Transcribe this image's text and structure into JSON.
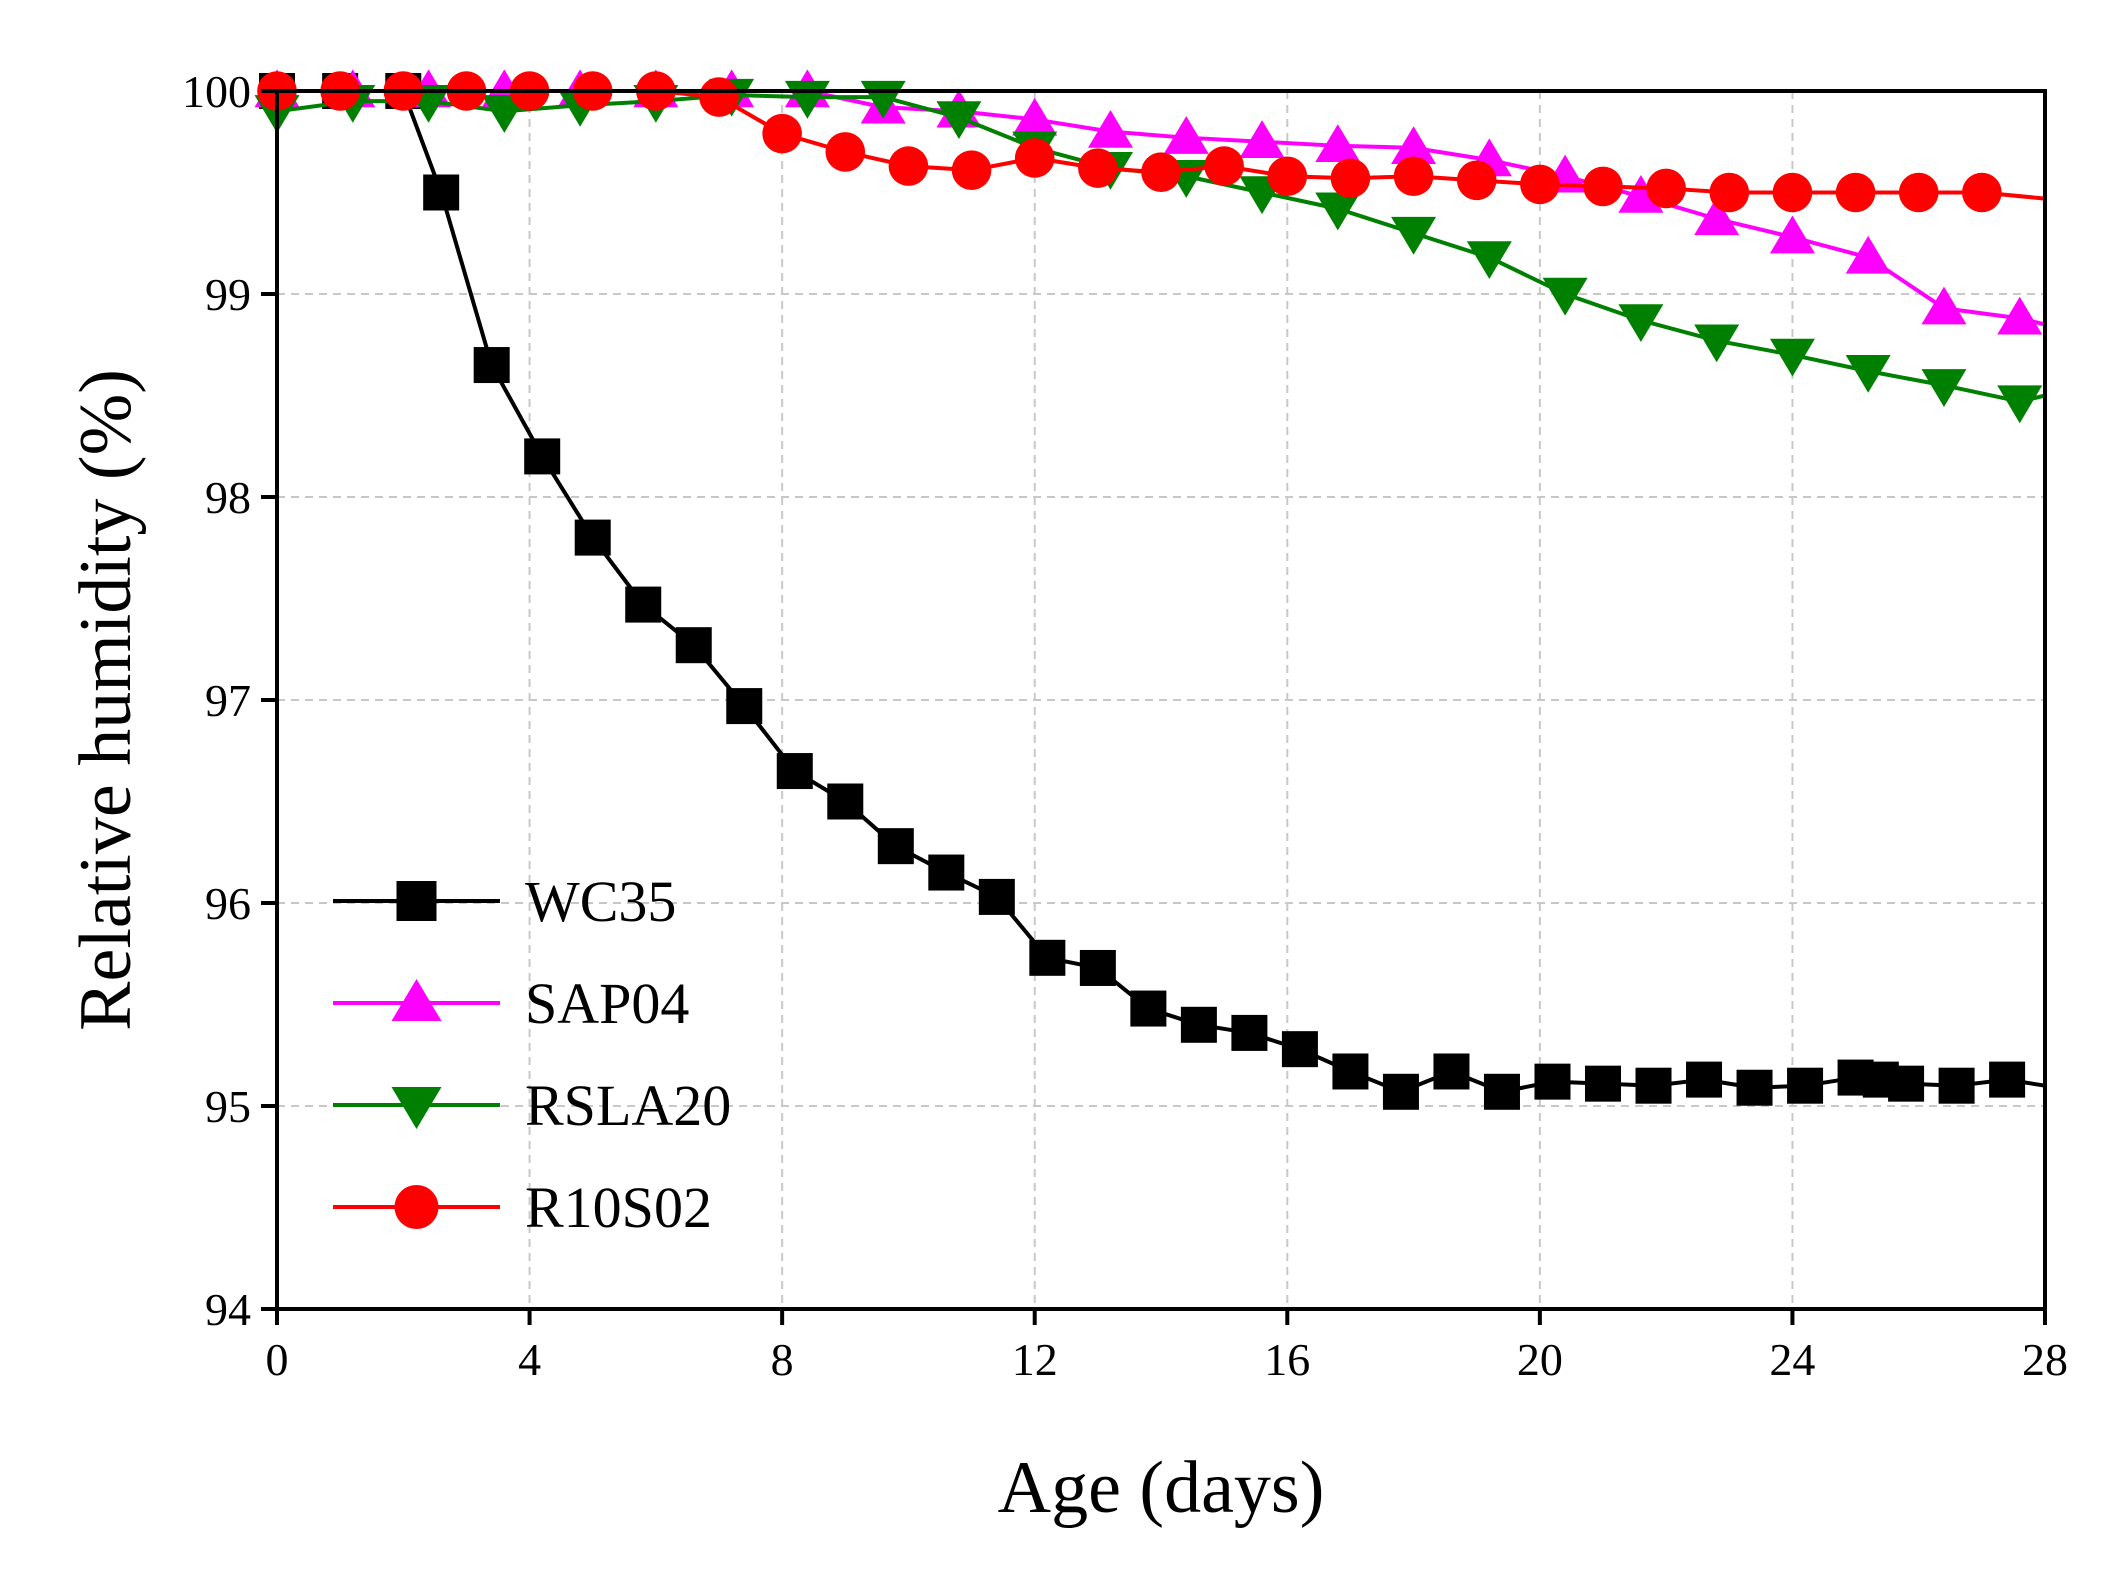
{
  "chart_data": {
    "type": "line",
    "xlabel": "Age (days)",
    "ylabel": "Relative humidity (%)",
    "xlim": [
      0,
      28
    ],
    "ylim": [
      94,
      100
    ],
    "xticks": [
      0,
      4,
      8,
      12,
      16,
      20,
      24,
      28
    ],
    "yticks": [
      94,
      95,
      96,
      97,
      98,
      99,
      100
    ],
    "grid": true,
    "legend_position": "lower-left",
    "series": [
      {
        "name": "WC35",
        "color": "#000000",
        "marker": "square",
        "x": [
          0,
          1,
          2,
          2.6,
          3.4,
          4.2,
          5.0,
          5.8,
          6.6,
          7.4,
          8.2,
          9.0,
          9.8,
          10.6,
          11.4,
          12.2,
          13.0,
          13.8,
          14.6,
          15.4,
          16.2,
          17.0,
          17.8,
          18.6,
          19.4,
          20.2,
          21.0,
          21.8,
          22.6,
          23.4,
          24.2,
          25.0,
          25.4,
          25.8,
          26.6,
          27.4,
          28
        ],
        "y": [
          100,
          100,
          100,
          99.5,
          98.65,
          98.2,
          97.8,
          97.47,
          97.27,
          96.97,
          96.65,
          96.5,
          96.28,
          96.15,
          96.03,
          95.73,
          95.68,
          95.48,
          95.4,
          95.36,
          95.28,
          95.17,
          95.07,
          95.17,
          95.07,
          95.12,
          95.11,
          95.1,
          95.13,
          95.09,
          95.1,
          95.14,
          95.13,
          95.11,
          95.1,
          95.13,
          95.1
        ]
      },
      {
        "name": "SAP04",
        "color": "#ff00ff",
        "marker": "triangle-up",
        "x": [
          0,
          1.2,
          2.4,
          3.6,
          4.8,
          6.0,
          7.2,
          8.4,
          9.6,
          10.8,
          12.0,
          13.2,
          14.4,
          15.6,
          16.8,
          18.0,
          19.2,
          20.4,
          21.6,
          22.8,
          24.0,
          25.2,
          26.4,
          27.6,
          28
        ],
        "y": [
          100,
          100,
          100,
          100,
          100,
          100,
          100,
          100,
          99.92,
          99.9,
          99.86,
          99.8,
          99.77,
          99.75,
          99.73,
          99.72,
          99.66,
          99.58,
          99.48,
          99.37,
          99.28,
          99.18,
          98.93,
          98.88,
          98.85
        ]
      },
      {
        "name": "RSLA20",
        "color": "#008000",
        "marker": "triangle-down",
        "x": [
          0,
          1.2,
          2.4,
          3.6,
          4.8,
          6.0,
          7.2,
          8.4,
          9.6,
          10.8,
          12.0,
          13.2,
          14.4,
          15.6,
          16.8,
          18.0,
          19.2,
          20.4,
          21.6,
          22.8,
          24.0,
          25.2,
          26.4,
          27.6,
          28
        ],
        "y": [
          99.9,
          99.95,
          99.95,
          99.9,
          99.93,
          99.95,
          99.98,
          99.97,
          99.97,
          99.87,
          99.72,
          99.62,
          99.58,
          99.5,
          99.42,
          99.3,
          99.18,
          99.0,
          98.87,
          98.77,
          98.7,
          98.62,
          98.55,
          98.47,
          98.5
        ]
      },
      {
        "name": "R10S02",
        "color": "#ff0000",
        "marker": "circle",
        "x": [
          0,
          1.0,
          2.0,
          3.0,
          4.0,
          5.0,
          6.0,
          7.0,
          8.0,
          9.0,
          10.0,
          11.0,
          12.0,
          13.0,
          14.0,
          15.0,
          16.0,
          17.0,
          18.0,
          19.0,
          20.0,
          21.0,
          22.0,
          23.0,
          24.0,
          25.0,
          26.0,
          27.0,
          28
        ],
        "y": [
          100,
          100,
          100,
          100,
          100,
          100,
          100,
          99.97,
          99.79,
          99.7,
          99.63,
          99.61,
          99.67,
          99.62,
          99.6,
          99.63,
          99.58,
          99.57,
          99.58,
          99.56,
          99.54,
          99.53,
          99.52,
          99.5,
          99.5,
          99.5,
          99.5,
          99.5,
          99.47
        ]
      }
    ]
  }
}
